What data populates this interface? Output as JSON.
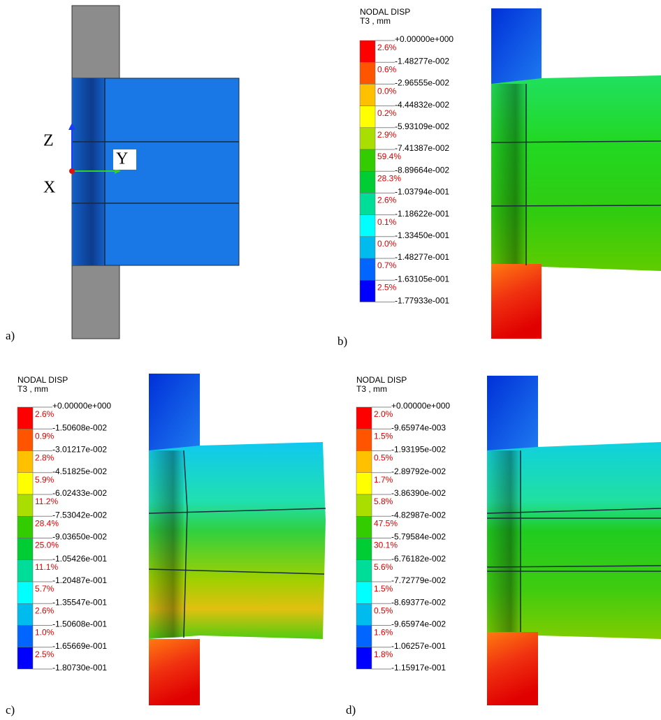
{
  "panels": [
    {
      "label": "a)",
      "axes": [
        "Z",
        "Y",
        "X"
      ]
    },
    {
      "label": "b)",
      "legend": {
        "title": "NODAL DISP",
        "unit": "T3 , mm",
        "levels": [
          "+0.00000e+000",
          "-1.48277e-002",
          "-2.96555e-002",
          "-4.44832e-002",
          "-5.93109e-002",
          "-7.41387e-002",
          "-8.89664e-002",
          "-1.03794e-001",
          "-1.18622e-001",
          "-1.33450e-001",
          "-1.48277e-001",
          "-1.63105e-001",
          "-1.77933e-001"
        ],
        "percents": [
          "2.6%",
          "0.6%",
          "0.0%",
          "0.2%",
          "2.9%",
          "59.4%",
          "28.3%",
          "2.6%",
          "0.1%",
          "0.0%",
          "0.7%",
          "2.5%"
        ]
      }
    },
    {
      "label": "c)",
      "legend": {
        "title": "NODAL DISP",
        "unit": "T3 , mm",
        "levels": [
          "+0.00000e+000",
          "-1.50608e-002",
          "-3.01217e-002",
          "-4.51825e-002",
          "-6.02433e-002",
          "-7.53042e-002",
          "-9.03650e-002",
          "-1.05426e-001",
          "-1.20487e-001",
          "-1.35547e-001",
          "-1.50608e-001",
          "-1.65669e-001",
          "-1.80730e-001"
        ],
        "percents": [
          "2.6%",
          "0.9%",
          "2.8%",
          "5.9%",
          "11.2%",
          "28.4%",
          "25.0%",
          "11.1%",
          "5.7%",
          "2.6%",
          "1.0%",
          "2.5%"
        ]
      }
    },
    {
      "label": "d)",
      "legend": {
        "title": "NODAL DISP",
        "unit": "T3 , mm",
        "levels": [
          "+0.00000e+000",
          "-9.65974e-003",
          "-1.93195e-002",
          "-2.89792e-002",
          "-3.86390e-002",
          "-4.82987e-002",
          "-5.79584e-002",
          "-6.76182e-002",
          "-7.72779e-002",
          "-8.69377e-002",
          "-9.65974e-002",
          "-1.06257e-001",
          "-1.15917e-001"
        ],
        "percents": [
          "2.0%",
          "1.5%",
          "0.5%",
          "1.7%",
          "5.8%",
          "47.5%",
          "30.1%",
          "5.6%",
          "1.5%",
          "0.5%",
          "1.6%",
          "1.8%"
        ]
      }
    }
  ]
}
